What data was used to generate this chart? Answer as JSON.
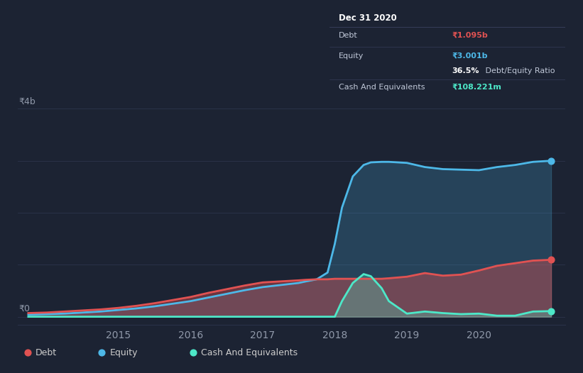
{
  "bg_color": "#1c2333",
  "plot_bg_color": "#1c2333",
  "ylabel_text": "₹4b",
  "y0_text": "₹0",
  "xlim": [
    2013.6,
    2021.2
  ],
  "ylim": [
    -0.15,
    4.3
  ],
  "debt_color": "#e05252",
  "equity_color": "#4db8e8",
  "cash_color": "#4de8c8",
  "grid_color": "#2a3248",
  "tooltip": {
    "date": "Dec 31 2020",
    "debt_label": "Debt",
    "debt_value": "₹1.095b",
    "equity_label": "Equity",
    "equity_value": "₹3.001b",
    "ratio_bold": "36.5%",
    "ratio_rest": " Debt/Equity Ratio",
    "cash_label": "Cash And Equivalents",
    "cash_value": "₹108.221m",
    "bg_color": "#0d1017",
    "border_color": "#3a4060",
    "text_color": "#c0c8d8",
    "title_color": "#ffffff"
  },
  "time": [
    2013.75,
    2014.0,
    2014.25,
    2014.5,
    2014.75,
    2015.0,
    2015.25,
    2015.5,
    2015.75,
    2016.0,
    2016.25,
    2016.5,
    2016.75,
    2017.0,
    2017.25,
    2017.5,
    2017.6,
    2017.75,
    2017.9,
    2018.0,
    2018.1,
    2018.25,
    2018.4,
    2018.5,
    2018.65,
    2018.75,
    2019.0,
    2019.25,
    2019.5,
    2019.75,
    2020.0,
    2020.25,
    2020.5,
    2020.75,
    2021.0
  ],
  "debt": [
    0.07,
    0.08,
    0.1,
    0.12,
    0.14,
    0.17,
    0.21,
    0.26,
    0.32,
    0.38,
    0.46,
    0.53,
    0.6,
    0.66,
    0.68,
    0.7,
    0.71,
    0.72,
    0.72,
    0.73,
    0.73,
    0.73,
    0.73,
    0.73,
    0.73,
    0.74,
    0.77,
    0.84,
    0.79,
    0.81,
    0.89,
    0.98,
    1.03,
    1.08,
    1.095
  ],
  "equity": [
    0.04,
    0.05,
    0.06,
    0.08,
    0.1,
    0.13,
    0.16,
    0.2,
    0.25,
    0.3,
    0.37,
    0.44,
    0.51,
    0.57,
    0.61,
    0.65,
    0.68,
    0.72,
    0.85,
    1.4,
    2.1,
    2.7,
    2.92,
    2.97,
    2.98,
    2.98,
    2.96,
    2.88,
    2.84,
    2.83,
    2.82,
    2.88,
    2.92,
    2.98,
    3.001
  ],
  "cash": [
    0.0,
    0.0,
    0.0,
    0.0,
    0.0,
    0.0,
    0.0,
    0.0,
    0.0,
    0.0,
    0.0,
    0.0,
    0.0,
    0.0,
    0.0,
    0.0,
    0.0,
    0.0,
    0.0,
    0.0,
    0.3,
    0.65,
    0.82,
    0.78,
    0.55,
    0.3,
    0.06,
    0.1,
    0.07,
    0.05,
    0.06,
    0.02,
    0.02,
    0.1,
    0.108
  ],
  "x_ticks": [
    2015.0,
    2016.0,
    2017.0,
    2018.0,
    2019.0,
    2020.0
  ],
  "x_tick_labels": [
    "2015",
    "2016",
    "2017",
    "2018",
    "2019",
    "2020"
  ],
  "legend": [
    {
      "label": "Debt",
      "color": "#e05252"
    },
    {
      "label": "Equity",
      "color": "#4db8e8"
    },
    {
      "label": "Cash And Equivalents",
      "color": "#4de8c8"
    }
  ]
}
